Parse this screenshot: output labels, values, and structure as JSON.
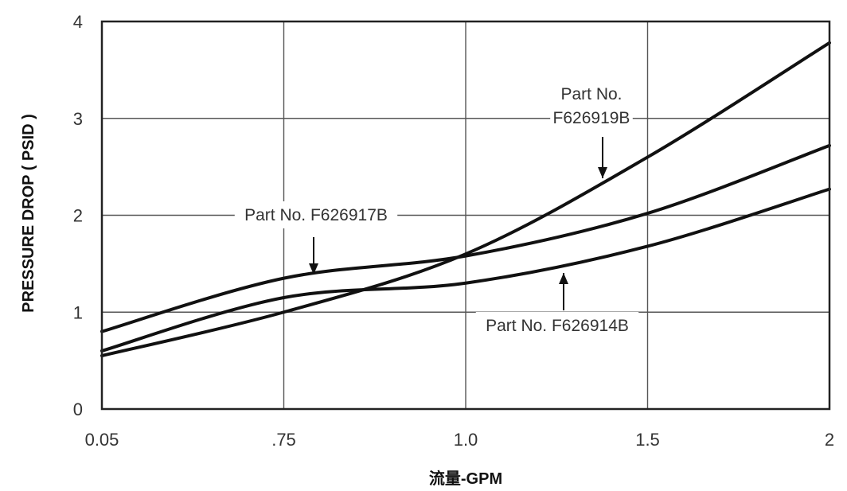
{
  "chart_data": {
    "type": "line",
    "xlabel": "流量-GPM",
    "ylabel": "PRESSURE DROP ( PSID )",
    "x_tick_labels": [
      "0.05",
      ".75",
      "1.0",
      "1.5",
      "2"
    ],
    "y_tick_labels": [
      "0",
      "1",
      "2",
      "3",
      "4"
    ],
    "ylim": [
      0,
      4
    ],
    "grid": true,
    "series": [
      {
        "name": "Part No. F626919B",
        "x": [
          "0.05",
          ".75",
          "1.0",
          "1.5",
          "2"
        ],
        "values": [
          0.55,
          1.0,
          1.6,
          2.6,
          3.78
        ]
      },
      {
        "name": "Part No. F626917B",
        "x": [
          "0.05",
          ".75",
          "1.0",
          "1.5",
          "2"
        ],
        "values": [
          0.8,
          1.35,
          1.58,
          2.02,
          2.72
        ]
      },
      {
        "name": "Part No. F626914B",
        "x": [
          "0.05",
          ".75",
          "1.0",
          "1.5",
          "2"
        ],
        "values": [
          0.6,
          1.15,
          1.3,
          1.68,
          2.27
        ]
      }
    ],
    "annotations": [
      {
        "series": "Part No. F626919B",
        "lines": [
          "Part No.",
          "F626919B"
        ]
      },
      {
        "series": "Part No. F626917B",
        "lines": [
          "Part No. F626917B"
        ]
      },
      {
        "series": "Part No. F626914B",
        "lines": [
          "Part No. F626914B"
        ]
      }
    ],
    "colors": {
      "line": "#111111",
      "grid": "#555555",
      "frame": "#222222",
      "text": "#333333"
    }
  }
}
